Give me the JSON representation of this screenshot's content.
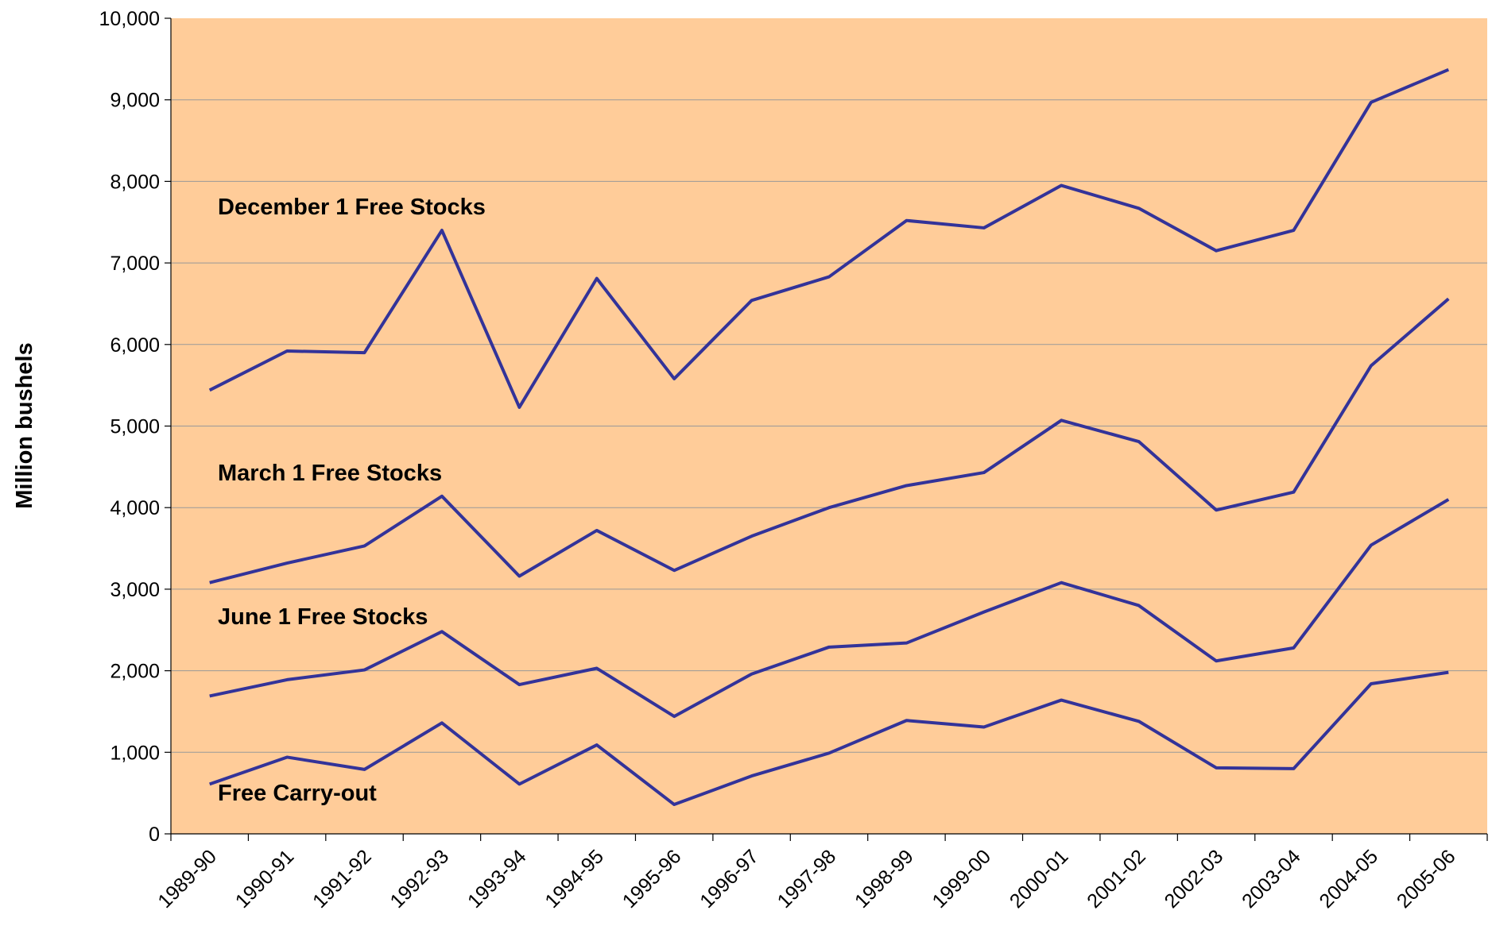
{
  "chart_data": {
    "type": "line",
    "ylabel": "Million bushels",
    "categories": [
      "1989-90",
      "1990-91",
      "1991-92",
      "1992-93",
      "1993-94",
      "1994-95",
      "1995-96",
      "1996-97",
      "1997-98",
      "1998-99",
      "1999-00",
      "2000-01",
      "2001-02",
      "2002-03",
      "2003-04",
      "2004-05",
      "2005-06"
    ],
    "series": [
      {
        "name": "December 1 Free Stocks",
        "color": "#333399",
        "values": [
          5440,
          5920,
          5900,
          7400,
          5230,
          6810,
          5580,
          6540,
          6830,
          7520,
          7430,
          7950,
          7670,
          7150,
          7400,
          8970,
          9370
        ]
      },
      {
        "name": "March 1 Free Stocks",
        "color": "#333399",
        "values": [
          3080,
          3320,
          3530,
          4140,
          3160,
          3720,
          3230,
          3650,
          4000,
          4270,
          4430,
          5070,
          4810,
          3970,
          4190,
          5740,
          6560
        ]
      },
      {
        "name": "June 1 Free Stocks",
        "color": "#333399",
        "values": [
          1690,
          1890,
          2010,
          2480,
          1830,
          2030,
          1440,
          1960,
          2290,
          2340,
          2720,
          3080,
          2800,
          2120,
          2280,
          3540,
          4100
        ]
      },
      {
        "name": "Free Carry-out",
        "color": "#333399",
        "values": [
          610,
          940,
          790,
          1360,
          610,
          1090,
          360,
          710,
          990,
          1390,
          1310,
          1640,
          1380,
          810,
          800,
          1840,
          1980
        ]
      }
    ],
    "ylim": [
      0,
      10000
    ],
    "yticks": [
      0,
      {
        "value": 1000,
        "label": "1,000"
      },
      {
        "value": 2000,
        "label": "2,000"
      },
      {
        "value": 3000,
        "label": "3,000"
      },
      {
        "value": 4000,
        "label": "4,000"
      },
      {
        "value": 5000,
        "label": "5,000"
      },
      {
        "value": 6000,
        "label": "6,000"
      },
      {
        "value": 7000,
        "label": "7,000"
      },
      {
        "value": 8000,
        "label": "8,000"
      },
      {
        "value": 9000,
        "label": "9,000"
      },
      {
        "value": 10000,
        "label": "10,000"
      }
    ],
    "grid": true,
    "background": "#ffcc99"
  }
}
